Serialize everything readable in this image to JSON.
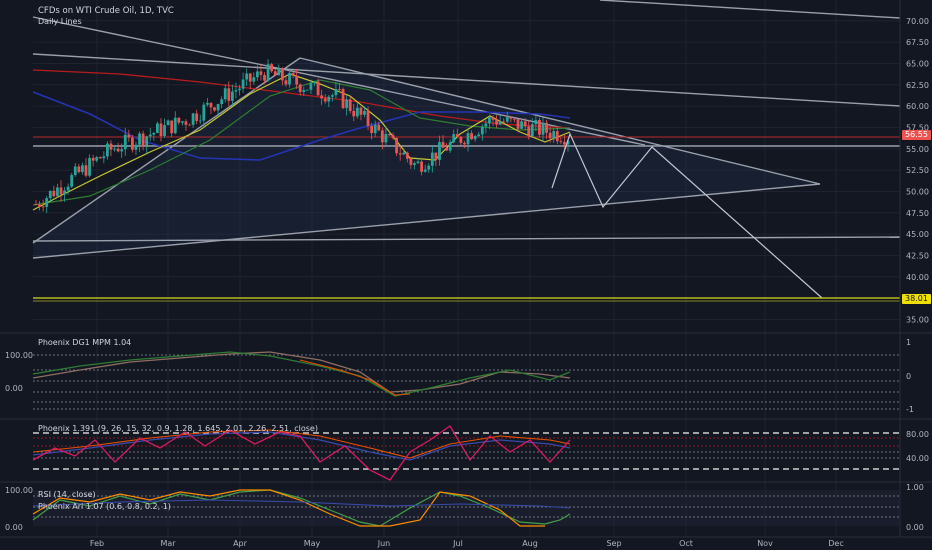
{
  "header": {
    "symbol_line": "CFDs on WTI Crude Oil, 1D, TVC",
    "subtitle": "Daily Lines"
  },
  "panes": {
    "dg1_label": "Phoenix DG1 MPM 1.04",
    "p1391_label": "Phoenix 1.391 (9, 26, 15, 32, 0.9, 1.28, 1.645, 2.01, 2.26, 2.51, close)",
    "rsi_label": "RSI (14, close)",
    "ari_label": "Phoenix Ari 1.07 (0.6, 0.8, 0.2, 1)"
  },
  "price_axis": {
    "ticks": [
      "70.00",
      "67.50",
      "65.00",
      "62.50",
      "60.00",
      "57.50",
      "55.00",
      "52.50",
      "50.00",
      "47.50",
      "45.00",
      "42.50",
      "40.00",
      "35.00"
    ],
    "last_price_label": "56.55",
    "target_label": "38.01"
  },
  "dg1_axis": {
    "left_ticks": [
      "100.00",
      "0.00"
    ],
    "right_ticks": [
      "1",
      "0",
      "-1"
    ]
  },
  "p1391_axis": {
    "right_ticks": [
      "80.00",
      "40.00"
    ]
  },
  "rsi_axis": {
    "left_ticks": [
      "100.00",
      "0.00"
    ],
    "right_ticks": [
      "1.00",
      "0.00"
    ]
  },
  "time_axis": {
    "months": [
      "Feb",
      "Mar",
      "Apr",
      "May",
      "Jun",
      "Jul",
      "Aug",
      "Sep",
      "Oct",
      "Nov",
      "Dec"
    ]
  },
  "colors": {
    "background": "#131722",
    "up": "#26a69a",
    "down": "#ef5350",
    "ma_yellow": "#c8c832",
    "ma_green": "#2e7d32",
    "ma_red": "#b71c1c",
    "ma_blue": "#2533b5",
    "trendline": "#9598a1",
    "target": "#c0c020"
  },
  "chart_data": {
    "type": "candlestick",
    "title": "CFDs on WTI Crude Oil, 1D, TVC",
    "ylim": [
      34,
      71.5
    ],
    "last_price": 56.55,
    "target_level": 38.01,
    "x_categories": [
      "Feb",
      "Mar",
      "Apr",
      "May",
      "Jun",
      "Jul",
      "Aug",
      "Sep",
      "Oct",
      "Nov",
      "Dec"
    ],
    "close_path_by_month": [
      {
        "month": "Jan",
        "close": 48.5
      },
      {
        "month": "Feb",
        "close": 55.0
      },
      {
        "month": "Mar",
        "close": 58.5
      },
      {
        "month": "Apr",
        "close": 64.0
      },
      {
        "month": "May",
        "close": 61.0
      },
      {
        "month": "Jun",
        "close": 53.0
      },
      {
        "month": "Jul",
        "close": 58.5
      },
      {
        "month": "Aug",
        "close": 56.5
      }
    ],
    "projection_path": [
      {
        "month": "Aug",
        "value": 56.5
      },
      {
        "month": "Sep",
        "value": 49.0
      },
      {
        "month": "Sep",
        "value": 55.5
      },
      {
        "month": "Nov",
        "value": 38.0
      }
    ]
  }
}
